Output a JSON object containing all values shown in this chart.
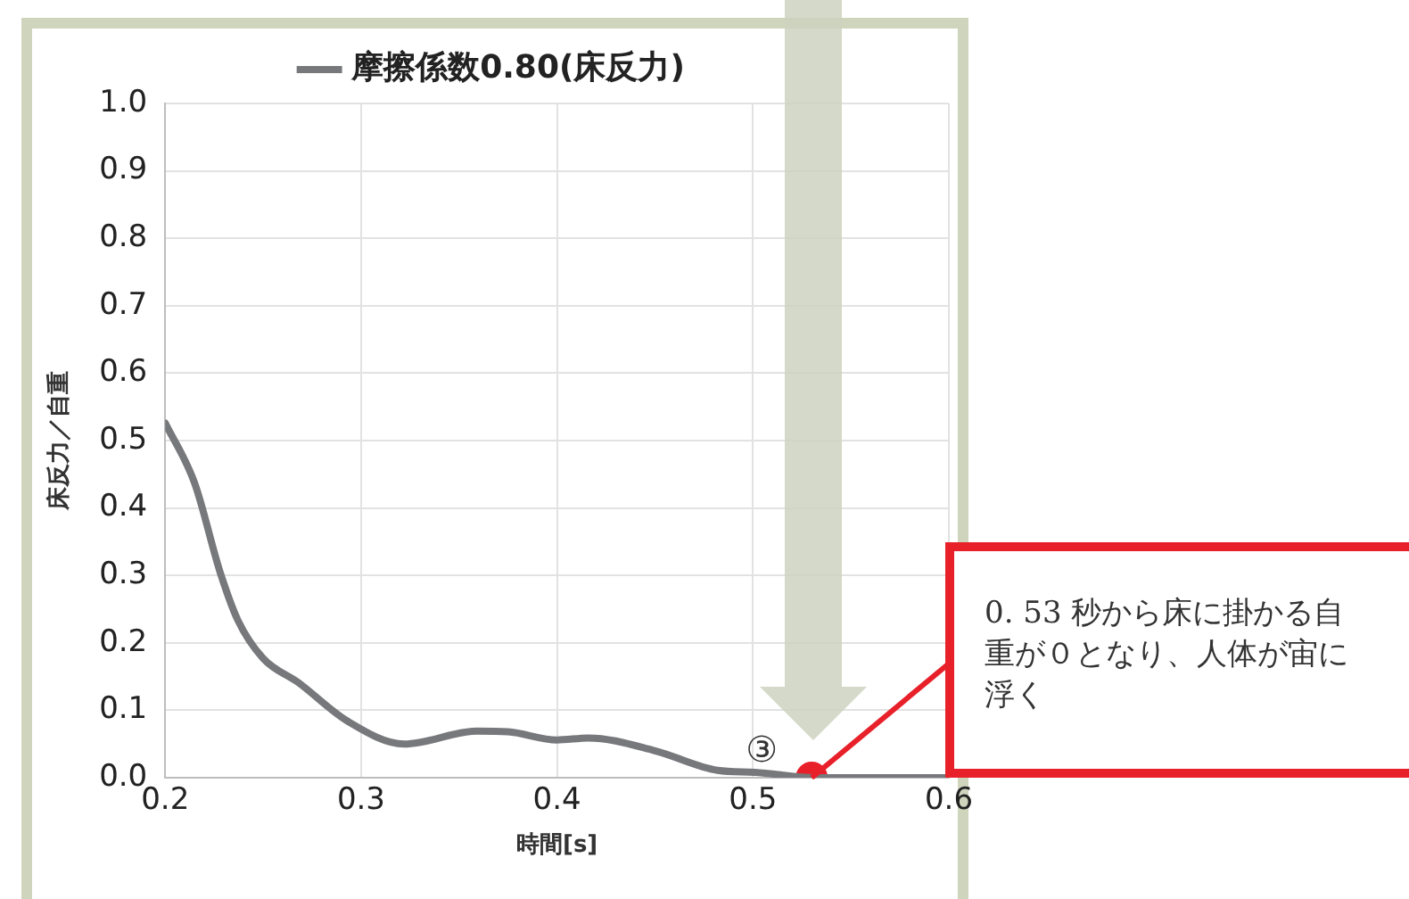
{
  "chart_data": {
    "type": "line",
    "xlabel": "時間[s]",
    "ylabel": "床反力／自重",
    "xlim": [
      0.2,
      0.6
    ],
    "xticks": [
      0.2,
      0.3,
      0.4,
      0.5,
      0.6
    ],
    "ylim": [
      0,
      1
    ],
    "yticks": [
      {
        "value": 0,
        "label": "0.0"
      },
      {
        "value": 0.1,
        "label": "0.1"
      },
      {
        "value": 0.2,
        "label": "0.2"
      },
      {
        "value": 0.3,
        "label": "0.3"
      },
      {
        "value": 0.4,
        "label": "0.4"
      },
      {
        "value": 0.5,
        "label": "0.5"
      },
      {
        "value": 0.6,
        "label": "0.6"
      },
      {
        "value": 0.7,
        "label": "0.7"
      },
      {
        "value": 0.8,
        "label": "0.8"
      },
      {
        "value": 0.9,
        "label": "0.9"
      },
      {
        "value": 1,
        "label": "1.0"
      }
    ],
    "grid": true,
    "legend": "top",
    "series": [
      {
        "name": "摩擦係数0.80(床反力)",
        "color": "#77787b",
        "marker": "none",
        "x": [
          0.2,
          0.215,
          0.228,
          0.237,
          0.25,
          0.268,
          0.293,
          0.322,
          0.359,
          0.375,
          0.4,
          0.416,
          0.45,
          0.482,
          0.501,
          0.532,
          0.6
        ],
        "values": [
          0.526,
          0.437,
          0.305,
          0.234,
          0.177,
          0.141,
          0.084,
          0.05,
          0.069,
          0.068,
          0.056,
          0.059,
          0.04,
          0.011,
          0.008,
          0,
          0
        ]
      },
      {
        "type": "scatter",
        "color": "#e8202a",
        "marker": "circle",
        "x": [
          0.53
        ],
        "values": [
          0
        ]
      }
    ],
    "annotations": [
      {
        "text": "③",
        "x": 0.53,
        "y": 0
      },
      {
        "text": "0. 53 秒から床に掛かる自重が０となり、人体が宙に浮く",
        "x": 0.53,
        "y": 0
      }
    ]
  }
}
